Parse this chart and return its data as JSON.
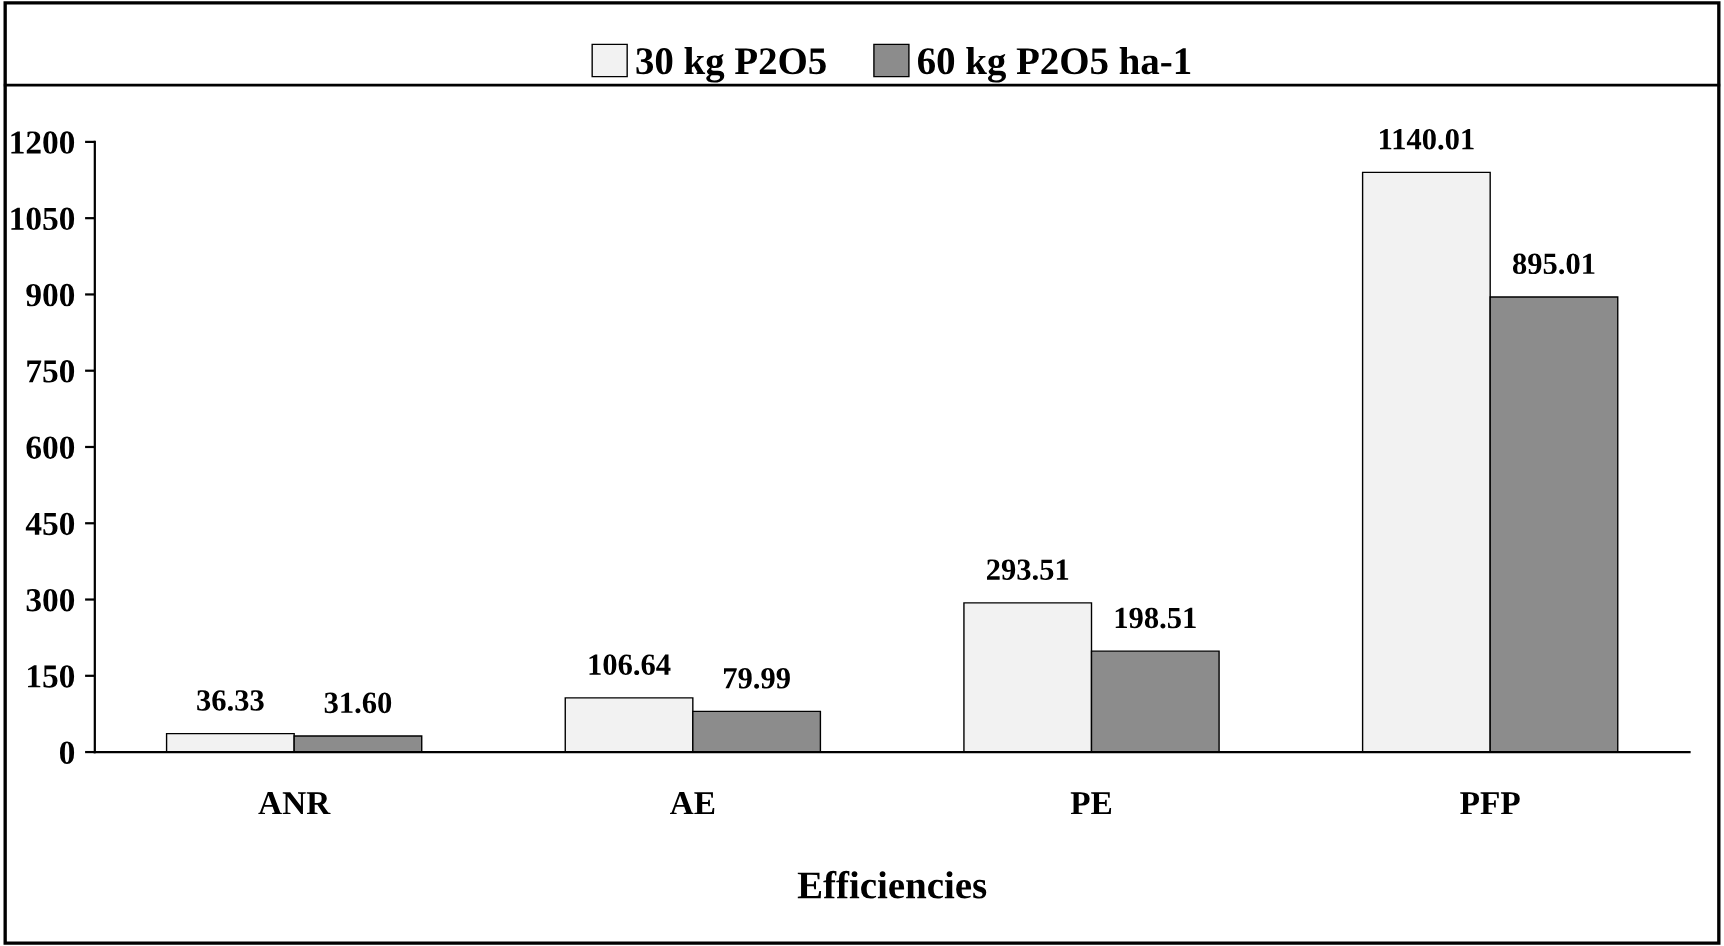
{
  "chart_data": {
    "type": "bar",
    "xlabel": "Efficiencies",
    "categories": [
      "ANR",
      "AE",
      "PE",
      "PFP"
    ],
    "series": [
      {
        "name": "30 kg P2O5",
        "color": "#f2f2f2",
        "values": [
          36.33,
          106.64,
          293.51,
          1140.01
        ],
        "value_labels": [
          "36.33",
          "106.64",
          "293.51",
          "1140.01"
        ]
      },
      {
        "name": "60 kg P2O5 ha-1",
        "color": "#8c8c8c",
        "values": [
          31.6,
          79.99,
          198.51,
          895.01
        ],
        "value_labels": [
          "31.60",
          "79.99",
          "198.51",
          "895.01"
        ]
      }
    ],
    "ylim": [
      0,
      1200
    ],
    "yticks": [
      0,
      150,
      300,
      450,
      600,
      750,
      900,
      1050,
      1200
    ],
    "grid": false,
    "legend": "top"
  }
}
